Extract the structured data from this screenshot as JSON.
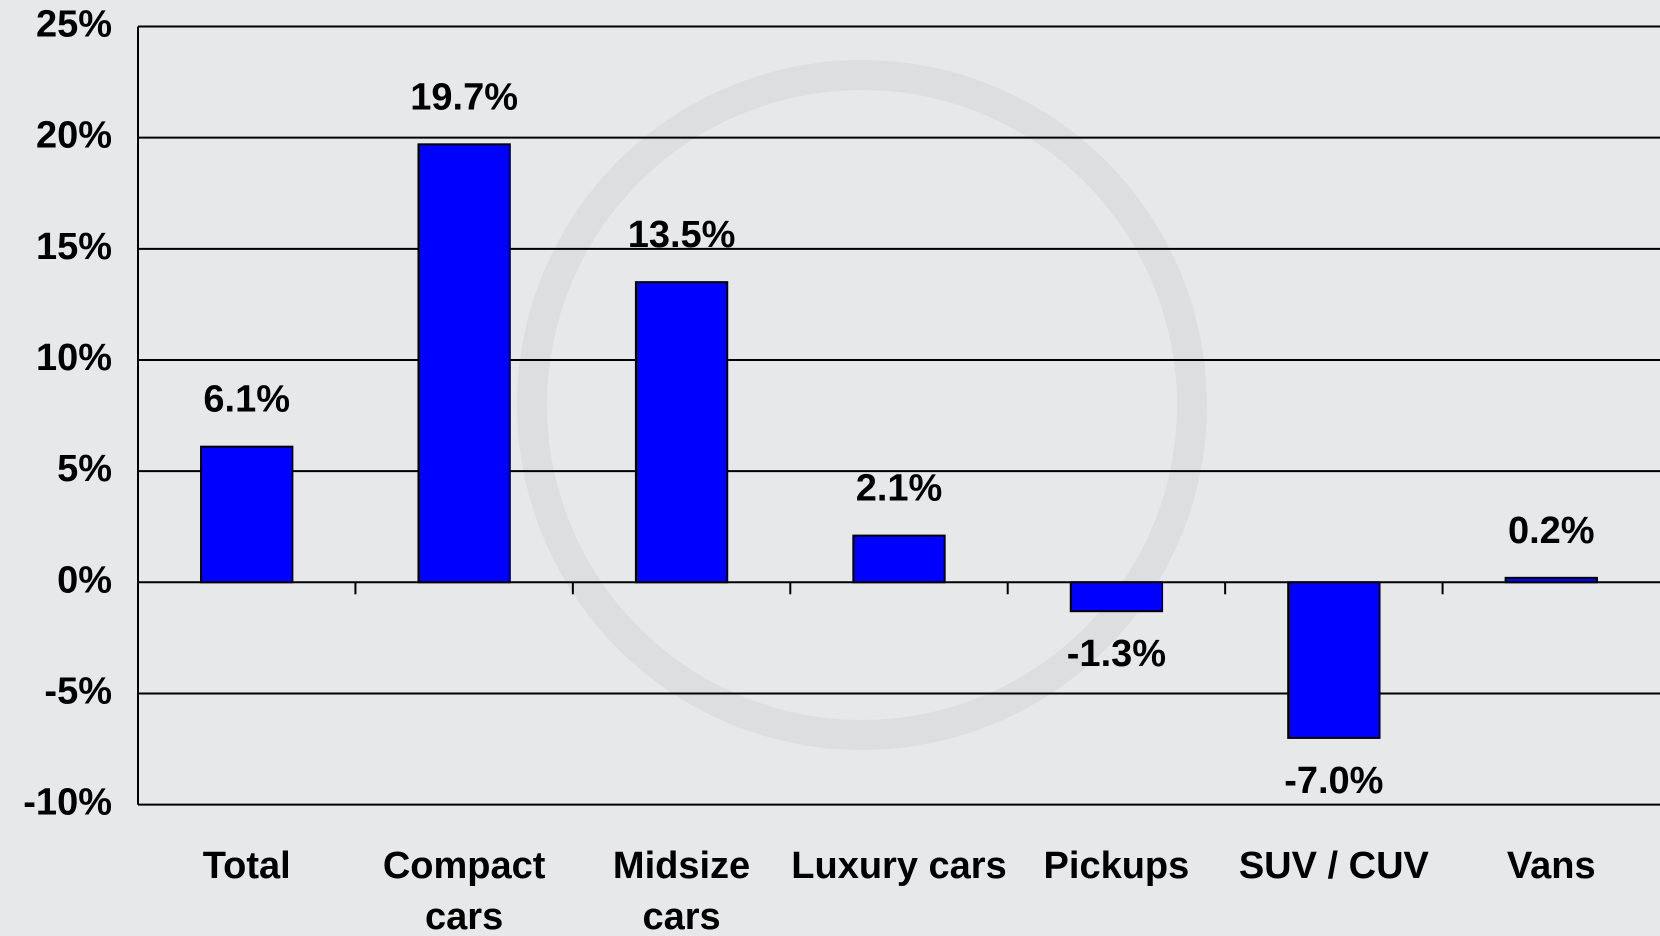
{
  "chart_data": {
    "type": "bar",
    "categories": [
      "Total",
      "Compact cars",
      "Midsize cars",
      "Luxury cars",
      "Pickups",
      "SUV / CUV",
      "Vans"
    ],
    "values": [
      6.1,
      19.7,
      13.5,
      2.1,
      -1.3,
      -7.0,
      0.2
    ],
    "value_labels": [
      "6.1%",
      "19.7%",
      "13.5%",
      "2.1%",
      "-1.3%",
      "-7.0%",
      "0.2%"
    ],
    "color": "#0000ff",
    "ylim": [
      -10,
      25
    ],
    "yticks": [
      {
        "value": -10,
        "label": "-10%"
      },
      {
        "value": -5,
        "label": "-5%"
      },
      {
        "value": 0,
        "label": "0%"
      },
      {
        "value": 5,
        "label": "5%"
      },
      {
        "value": 10,
        "label": "10%"
      },
      {
        "value": 15,
        "label": "15%"
      },
      {
        "value": 20,
        "label": "20%"
      },
      {
        "value": 25,
        "label": "25%"
      }
    ],
    "grid": true
  }
}
